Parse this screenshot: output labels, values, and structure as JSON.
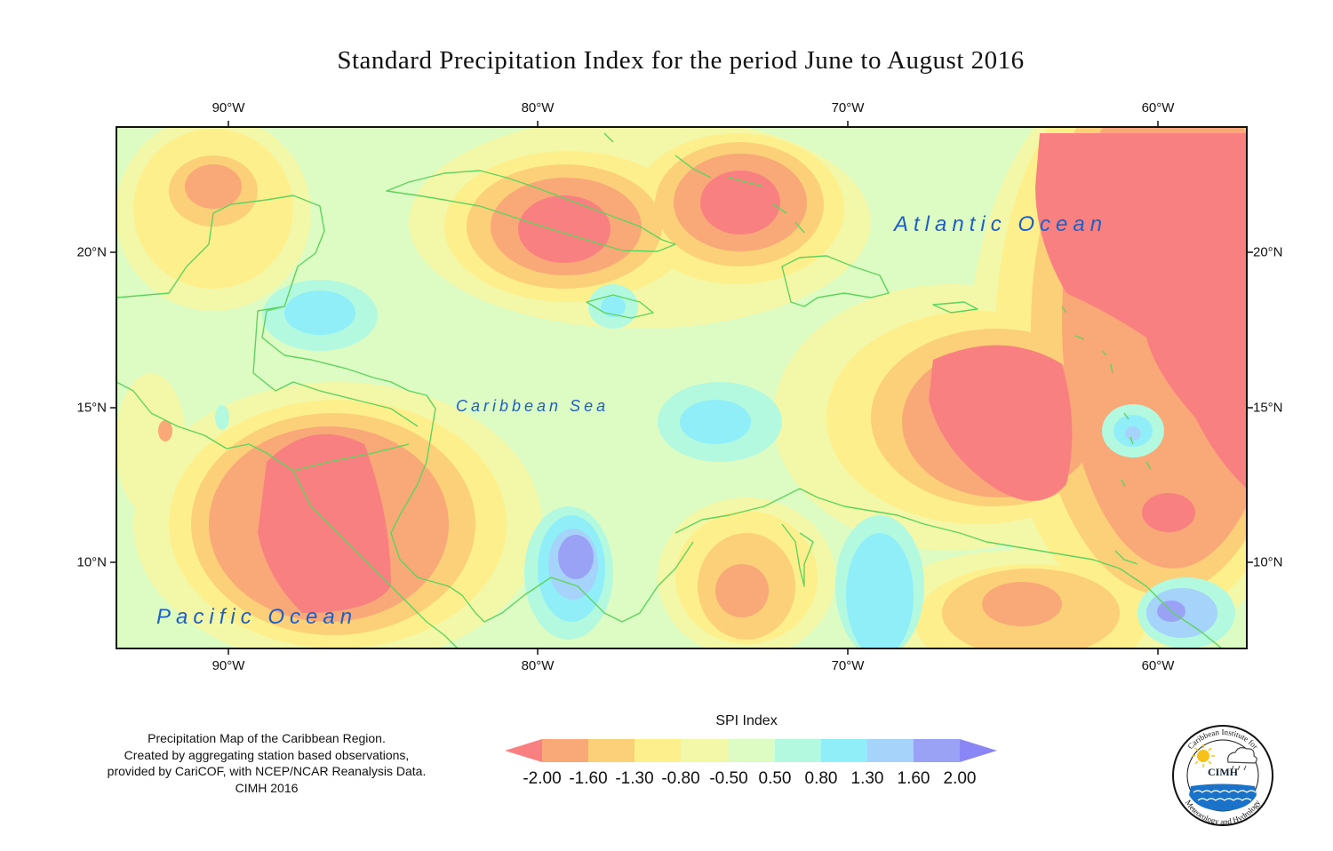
{
  "title": "Standard Precipitation Index for the period June to August 2016",
  "axes": {
    "lon_ticks_top": [
      "90°W",
      "80°W",
      "70°W",
      "60°W"
    ],
    "lon_ticks_bottom": [
      "90°W",
      "80°W",
      "70°W",
      "60°W"
    ],
    "lat_ticks_left": [
      "20°N",
      "15°N",
      "10°N"
    ],
    "lat_ticks_right": [
      "20°N",
      "15°N",
      "10°N"
    ]
  },
  "labels": {
    "atlantic": "Atlantic Ocean",
    "caribbean": "Caribbean Sea",
    "pacific": "Pacific Ocean"
  },
  "credit": {
    "line1": "Precipitation Map of the Caribbean Region.",
    "line2": "Created by aggregating station based observations,",
    "line3": "provided by CariCOF, with NCEP/NCAR Reanalysis Data.",
    "line4": "CIMH 2016"
  },
  "legend": {
    "title": "SPI Index",
    "ticks": [
      "-2.00",
      "-1.60",
      "-1.30",
      "-0.80",
      "-0.50",
      "0.50",
      "0.80",
      "1.30",
      "1.60",
      "2.00"
    ],
    "colors": [
      "#f98080",
      "#f9a978",
      "#fbd078",
      "#fdf08c",
      "#f3f7a8",
      "#dcfcc4",
      "#b2f9e0",
      "#90eef8",
      "#a6d3f9",
      "#9aa2f6",
      "#8a86f6"
    ]
  },
  "logo": {
    "text": "CIMH",
    "ring_top": "Caribbean Institute for",
    "ring_bottom": "Meteorology and Hydrology"
  },
  "colors": {
    "ocean_label": "#1f5fc4",
    "coastline": "#5fd35f"
  }
}
